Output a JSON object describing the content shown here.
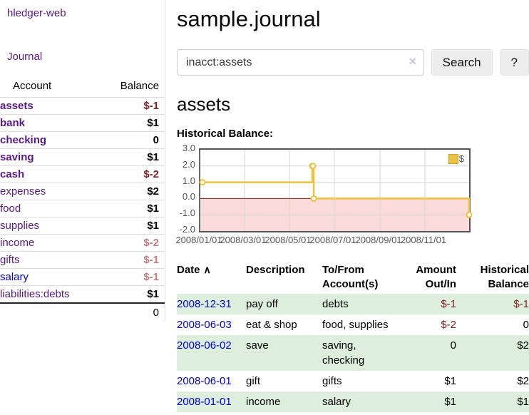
{
  "colors": {
    "link_purple": "#551a8b",
    "link_blue": "#0000cc",
    "negative_dark": "#801f1f",
    "negative_muted": "#c17d7d",
    "row_green": "#ddeedd",
    "chart_line_gold": "#edc240",
    "chart_negative_fill": "#fbdada",
    "chart_zero_line": "#8b1a1a"
  },
  "sidebar": {
    "app_title": "hledger-web",
    "journal_label": "Journal",
    "accounts_table": {
      "headers": [
        "Account",
        "Balance"
      ],
      "rows": [
        {
          "name": "assets",
          "balance": "$-1",
          "level": 1,
          "bold": true,
          "blue": false
        },
        {
          "name": "bank",
          "balance": "$1",
          "level": 2,
          "bold": true,
          "blue": false
        },
        {
          "name": "checking",
          "balance": "0",
          "level": 3,
          "bold": true,
          "blue": false
        },
        {
          "name": "saving",
          "balance": "$1",
          "level": 3,
          "bold": true,
          "blue": false
        },
        {
          "name": "cash",
          "balance": "$-2",
          "level": 2,
          "bold": true,
          "blue": false
        },
        {
          "name": "expenses",
          "balance": "$2",
          "level": 1,
          "bold": false,
          "blue": false
        },
        {
          "name": "food",
          "balance": "$1",
          "level": 2,
          "bold": false,
          "blue": false
        },
        {
          "name": "supplies",
          "balance": "$1",
          "level": 2,
          "bold": false,
          "blue": false
        },
        {
          "name": "income",
          "balance": "$-2",
          "level": 1,
          "bold": false,
          "blue": false
        },
        {
          "name": "gifts",
          "balance": "$-1",
          "level": 2,
          "bold": false,
          "blue": false
        },
        {
          "name": "salary",
          "balance": "$-1",
          "level": 2,
          "bold": false,
          "blue": true
        },
        {
          "name": "liabilities:debts",
          "balance": "$1",
          "level": 1,
          "bold": false,
          "blue": false
        }
      ],
      "total": "0"
    }
  },
  "header": {
    "title": "sample.journal"
  },
  "search": {
    "value": "inacct:assets",
    "clear_icon": "✕",
    "button_label": "Search",
    "help_label": "?"
  },
  "account_page": {
    "heading": "assets",
    "chart_label": "Historical Balance:"
  },
  "chart_data": {
    "type": "line",
    "step": true,
    "title": "Historical Balance:",
    "ylim": [
      -2,
      3
    ],
    "yticks": [
      3,
      2,
      1,
      0,
      -1,
      -2
    ],
    "xticks": [
      "2008/01/01",
      "2008/03/01",
      "2008/05/01",
      "2008/07/01",
      "2008/09/01",
      "2008/11/01"
    ],
    "legend": {
      "label": "$",
      "position": "top-right"
    },
    "grid": true,
    "series": [
      {
        "name": "$",
        "points": [
          [
            "2008-01-01",
            1
          ],
          [
            "2008-06-01",
            2
          ],
          [
            "2008-06-02",
            2
          ],
          [
            "2008-06-03",
            0
          ],
          [
            "2008-12-31",
            -1
          ]
        ]
      }
    ]
  },
  "register_table": {
    "sort_icon": "∧",
    "headers": [
      {
        "label": "Date",
        "sort": "asc"
      },
      {
        "label": "Description"
      },
      {
        "label": "To/From Account(s)"
      },
      {
        "label": "Amount Out/In",
        "align": "right"
      },
      {
        "label": "Historical Balance",
        "align": "right"
      }
    ],
    "rows": [
      {
        "date": "2008-12-31",
        "description": "pay off",
        "accounts": "debts",
        "amount": "$-1",
        "balance": "$-1"
      },
      {
        "date": "2008-06-03",
        "description": "eat & shop",
        "accounts": "food, supplies",
        "amount": "$-2",
        "balance": "0"
      },
      {
        "date": "2008-06-02",
        "description": "save",
        "accounts": "saving, checking",
        "amount": "0",
        "balance": "$2"
      },
      {
        "date": "2008-06-01",
        "description": "gift",
        "accounts": "gifts",
        "amount": "$1",
        "balance": "$2"
      },
      {
        "date": "2008-01-01",
        "description": "income",
        "accounts": "salary",
        "amount": "$1",
        "balance": "$1"
      }
    ]
  }
}
